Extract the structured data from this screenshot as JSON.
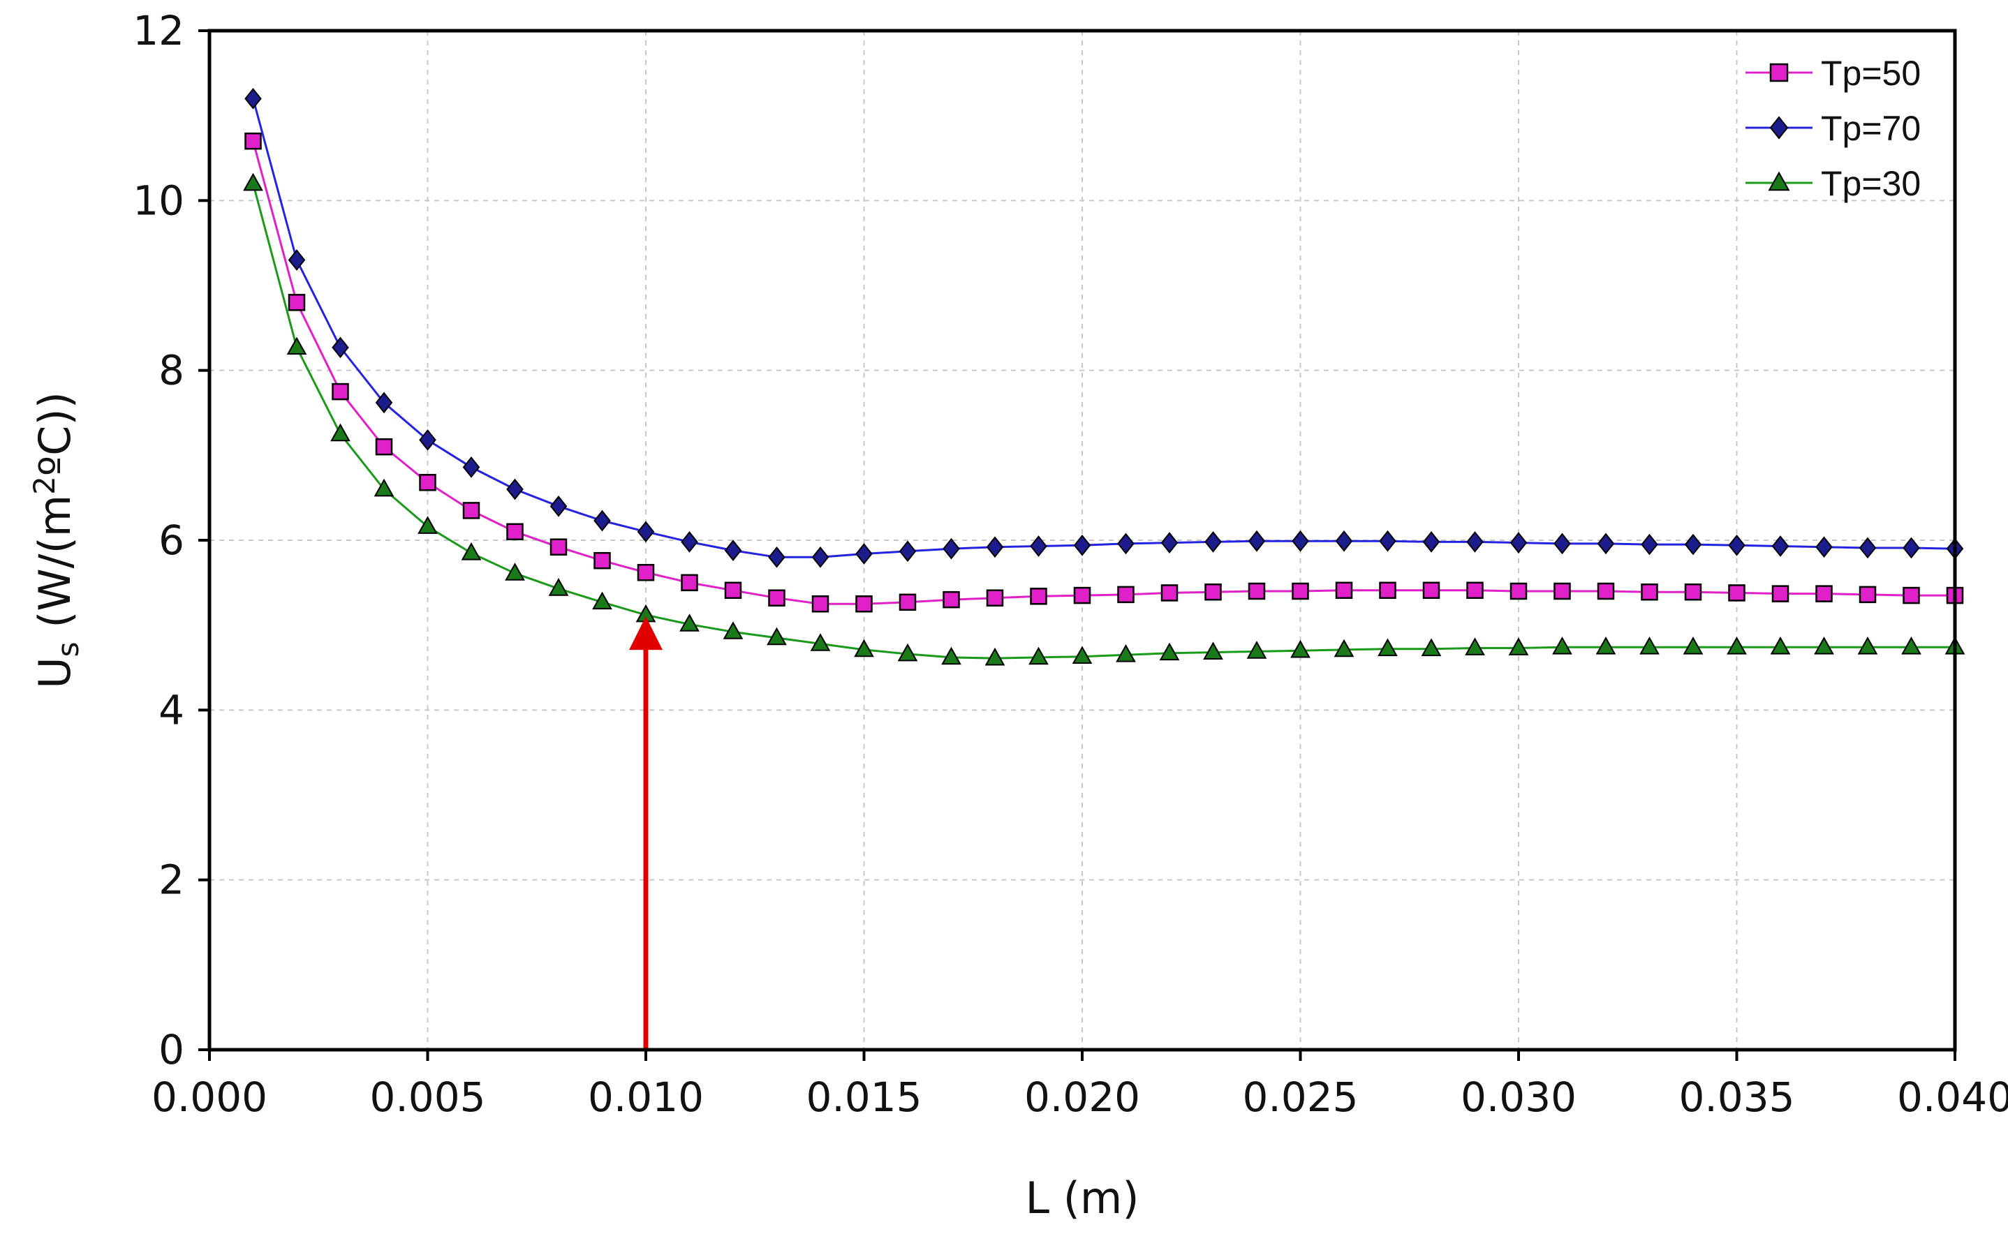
{
  "chart_data": {
    "type": "line",
    "title": "",
    "xlabel": "L (m)",
    "ylabel": "U",
    "ylabel_subscript": "s",
    "ylabel_rest_pre": " (W/(m",
    "ylabel_superscript": "2",
    "ylabel_rest_post": "ºC))",
    "xlim": [
      0.0,
      0.04
    ],
    "ylim": [
      0,
      12
    ],
    "xticks": [
      0.0,
      0.005,
      0.01,
      0.015,
      0.02,
      0.025,
      0.03,
      0.035,
      0.04
    ],
    "xtick_labels": [
      "0.000",
      "0.005",
      "0.010",
      "0.015",
      "0.020",
      "0.025",
      "0.030",
      "0.035",
      "0.040"
    ],
    "yticks": [
      0,
      2,
      4,
      6,
      8,
      10,
      12
    ],
    "ytick_labels": [
      "0",
      "2",
      "4",
      "6",
      "8",
      "10",
      "12"
    ],
    "grid": true,
    "legend_position": "top-right",
    "x": [
      0.001,
      0.002,
      0.003,
      0.004,
      0.005,
      0.006,
      0.007,
      0.008,
      0.009,
      0.01,
      0.011,
      0.012,
      0.013,
      0.014,
      0.015,
      0.016,
      0.017,
      0.018,
      0.019,
      0.02,
      0.021,
      0.022,
      0.023,
      0.024,
      0.025,
      0.026,
      0.027,
      0.028,
      0.029,
      0.03,
      0.031,
      0.032,
      0.033,
      0.034,
      0.035,
      0.036,
      0.037,
      0.038,
      0.039,
      0.04
    ],
    "series": [
      {
        "name": "Tp=50",
        "color": "#e020c8",
        "marker": "square",
        "marker_fill": "#e020c8",
        "values": [
          10.7,
          8.8,
          7.75,
          7.1,
          6.68,
          6.35,
          6.1,
          5.92,
          5.76,
          5.62,
          5.5,
          5.41,
          5.32,
          5.25,
          5.25,
          5.27,
          5.3,
          5.32,
          5.34,
          5.35,
          5.36,
          5.38,
          5.39,
          5.4,
          5.4,
          5.41,
          5.41,
          5.41,
          5.41,
          5.4,
          5.4,
          5.4,
          5.39,
          5.39,
          5.38,
          5.37,
          5.37,
          5.36,
          5.35,
          5.35
        ]
      },
      {
        "name": "Tp=70",
        "color": "#2323e0",
        "marker": "diamond",
        "marker_fill": "#1c1c8c",
        "values": [
          11.2,
          9.3,
          8.27,
          7.62,
          7.18,
          6.86,
          6.6,
          6.4,
          6.23,
          6.1,
          5.98,
          5.88,
          5.8,
          5.8,
          5.84,
          5.87,
          5.9,
          5.92,
          5.93,
          5.94,
          5.96,
          5.97,
          5.98,
          5.99,
          5.99,
          5.99,
          5.99,
          5.98,
          5.98,
          5.97,
          5.96,
          5.96,
          5.95,
          5.95,
          5.94,
          5.93,
          5.92,
          5.91,
          5.91,
          5.9
        ]
      },
      {
        "name": "Tp=30",
        "color": "#1a9a1a",
        "marker": "triangle",
        "marker_fill": "#1a7a1a",
        "values": [
          10.2,
          8.27,
          7.25,
          6.6,
          6.16,
          5.85,
          5.61,
          5.43,
          5.27,
          5.12,
          5.01,
          4.92,
          4.85,
          4.78,
          4.71,
          4.66,
          4.62,
          4.61,
          4.62,
          4.63,
          4.65,
          4.67,
          4.68,
          4.69,
          4.7,
          4.71,
          4.72,
          4.72,
          4.73,
          4.73,
          4.74,
          4.74,
          4.74,
          4.74,
          4.74,
          4.74,
          4.74,
          4.74,
          4.74,
          4.74
        ]
      }
    ],
    "annotation": {
      "type": "arrow",
      "color": "#e00000",
      "x": 0.01,
      "y_from": 0,
      "y_to": 5.12
    }
  }
}
